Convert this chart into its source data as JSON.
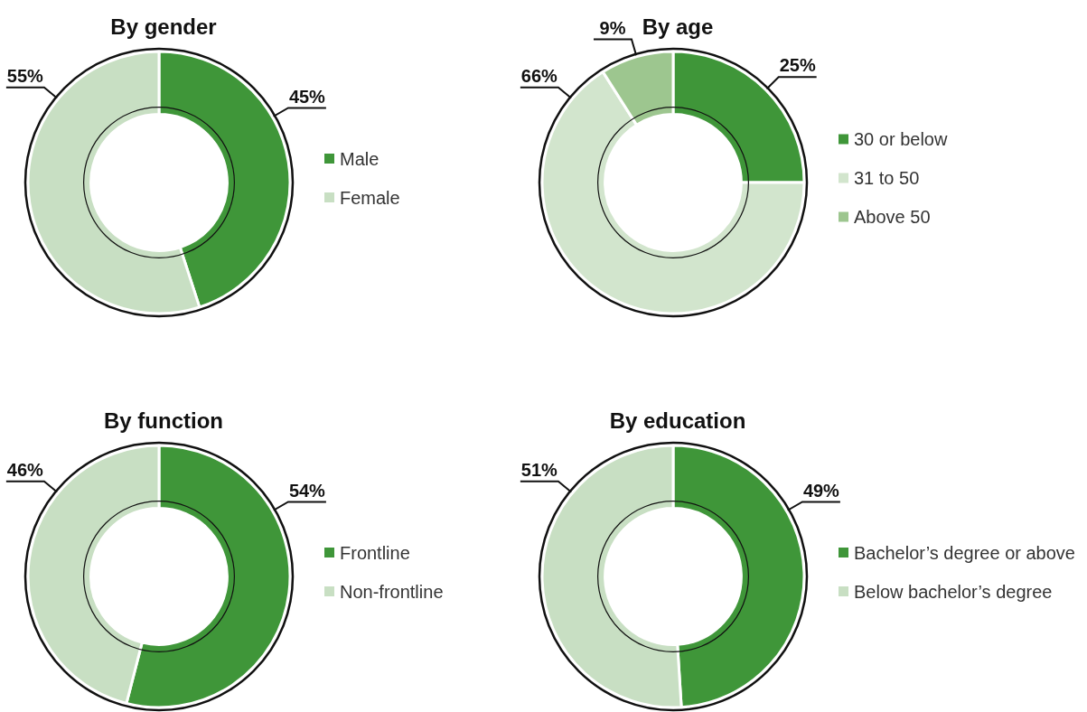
{
  "chart_data": [
    {
      "type": "donut",
      "title": "By gender",
      "categories": [
        "Male",
        "Female"
      ],
      "values": [
        45,
        55
      ],
      "colors": [
        "#3f9639",
        "#c8dfc3"
      ],
      "value_labels": [
        "45%",
        "55%"
      ],
      "legend": "right"
    },
    {
      "type": "donut",
      "title": "By age",
      "categories": [
        "30 or below",
        "31 to 50",
        "Above 50"
      ],
      "values": [
        25,
        66,
        9
      ],
      "colors": [
        "#3f9639",
        "#d2e5cd",
        "#9dc68f"
      ],
      "value_labels": [
        "25%",
        "66%",
        "9%"
      ],
      "legend": "right"
    },
    {
      "type": "donut",
      "title": "By function",
      "categories": [
        "Frontline",
        "Non-frontline"
      ],
      "values": [
        54,
        46
      ],
      "colors": [
        "#3f9639",
        "#c8dfc3"
      ],
      "value_labels": [
        "54%",
        "46%"
      ],
      "legend": "right"
    },
    {
      "type": "donut",
      "title": "By education",
      "categories": [
        "Bachelor’s degree or above",
        "Below bachelor’s degree"
      ],
      "values": [
        49,
        51
      ],
      "colors": [
        "#3f9639",
        "#c8dfc3"
      ],
      "value_labels": [
        "49%",
        "51%"
      ],
      "legend": "right"
    }
  ]
}
